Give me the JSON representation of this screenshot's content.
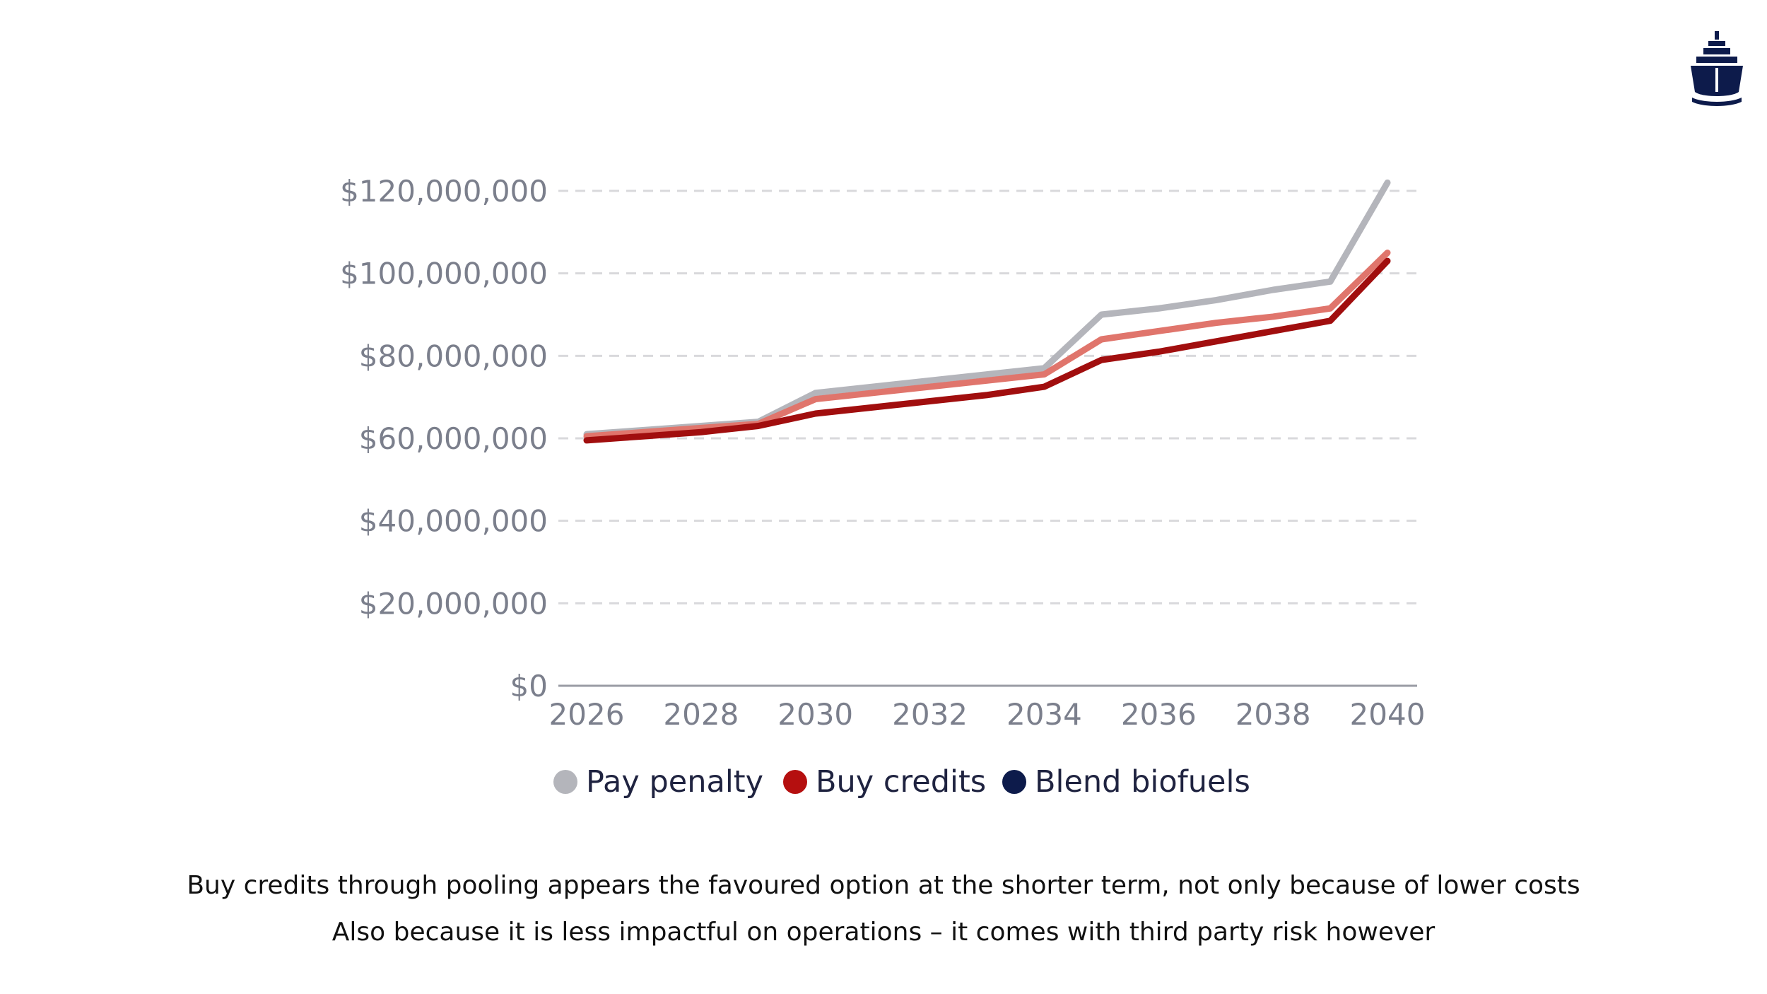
{
  "logo": {
    "icon": "ship-icon",
    "color": "#0d1b4b"
  },
  "chart_data": {
    "type": "line",
    "x": [
      2026,
      2027,
      2028,
      2029,
      2030,
      2031,
      2032,
      2033,
      2034,
      2035,
      2036,
      2037,
      2038,
      2039,
      2040
    ],
    "xticks": [
      2026,
      2028,
      2030,
      2032,
      2034,
      2036,
      2038,
      2040
    ],
    "xtick_labels": [
      "2026",
      "2028",
      "2030",
      "2032",
      "2034",
      "2036",
      "2038",
      "2040"
    ],
    "ylim": [
      0,
      120000000
    ],
    "yticks": [
      0,
      20000000,
      40000000,
      60000000,
      80000000,
      100000000,
      120000000
    ],
    "ytick_labels": [
      "$0",
      "$20,000,000",
      "$40,000,000",
      "$60,000,000",
      "$80,000,000",
      "$100,000,000",
      "$120,000,000"
    ],
    "grid": true,
    "legend_position": "bottom",
    "series": [
      {
        "name": "Pay penalty",
        "color": "#b4b5bb",
        "line_color": "#b4b5bb",
        "values": [
          61000000,
          62000000,
          63000000,
          64000000,
          71000000,
          72500000,
          74000000,
          75500000,
          77000000,
          90000000,
          91500000,
          93500000,
          96000000,
          98000000,
          122000000
        ]
      },
      {
        "name": "Buy credits",
        "color": "#b50f0f",
        "line_color": "#e0756c",
        "values": [
          60500000,
          61500000,
          62500000,
          63500000,
          69500000,
          71000000,
          72500000,
          74000000,
          75500000,
          84000000,
          86000000,
          88000000,
          89500000,
          91500000,
          105000000
        ]
      },
      {
        "name": "Blend biofuels",
        "color": "#0d1b4b",
        "line_color": "#a10e0e",
        "values": [
          59500000,
          60500000,
          61500000,
          63000000,
          66000000,
          67500000,
          69000000,
          70500000,
          72500000,
          79000000,
          81000000,
          83500000,
          86000000,
          88500000,
          103000000
        ]
      }
    ]
  },
  "caption": {
    "line1": "Buy credits through pooling appears the favoured option at the shorter term, not only because of lower costs",
    "line2": "Also because it is less impactful on operations – it comes with third party risk however"
  }
}
